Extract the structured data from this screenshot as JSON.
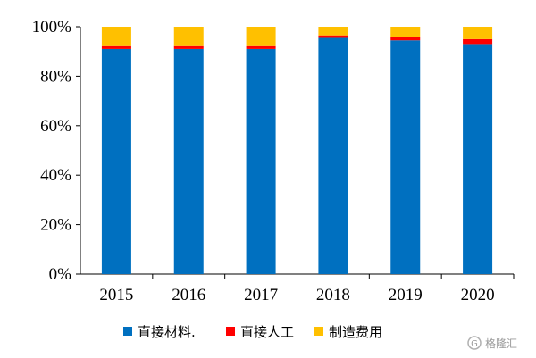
{
  "chart_data": {
    "type": "bar",
    "stacked": true,
    "categories": [
      "2015",
      "2016",
      "2017",
      "2018",
      "2019",
      "2020"
    ],
    "series": [
      {
        "name": "直接材料.",
        "color": "#0070C0",
        "values": [
          91.0,
          91.0,
          91.0,
          95.5,
          94.5,
          93.0
        ]
      },
      {
        "name": "直接人工",
        "color": "#FF0000",
        "values": [
          1.5,
          1.5,
          1.5,
          1.0,
          1.5,
          2.0
        ]
      },
      {
        "name": "制造费用",
        "color": "#FFC000",
        "values": [
          7.5,
          7.5,
          7.5,
          3.5,
          4.0,
          5.0
        ]
      }
    ],
    "ylim": [
      0,
      100
    ],
    "yticks": [
      "0%",
      "20%",
      "40%",
      "60%",
      "80%",
      "100%"
    ],
    "xlabel": "",
    "ylabel": "",
    "grid": false,
    "legend_position": "bottom"
  },
  "watermark": {
    "text": "格隆汇"
  }
}
